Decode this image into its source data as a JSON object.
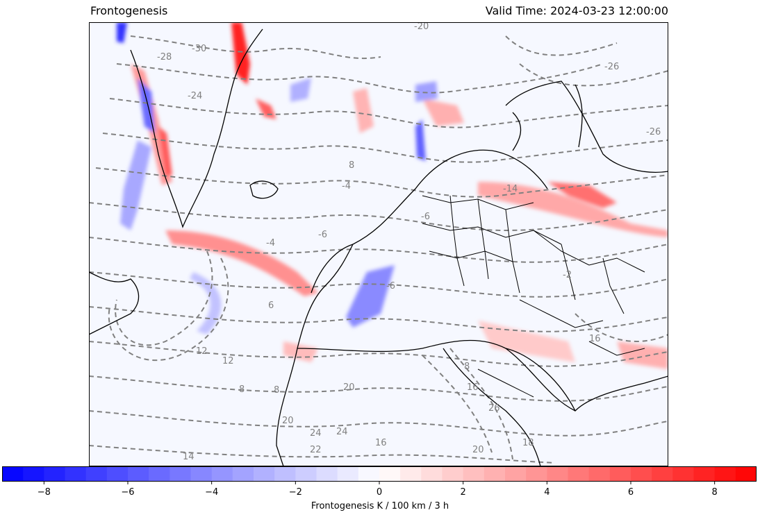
{
  "header": {
    "title_left": "Frontogenesis",
    "title_right": "Valid Time: 2024-03-23 12:00:00"
  },
  "map": {
    "field": "frontogenesis",
    "contour_labels": [
      "-30",
      "-28",
      "-24",
      "-20",
      "-26",
      "-26",
      "8",
      "-4",
      "-14",
      "-6",
      "-2",
      "-6",
      "6",
      "12",
      "12",
      "8",
      "8",
      "8",
      "20",
      "20",
      "24",
      "24",
      "22",
      "16",
      "16",
      "20",
      "26",
      "18",
      "14",
      "-6",
      "-4",
      "16"
    ],
    "fill_colors": {
      "negative": "#0000ff",
      "zero": "#ffffff",
      "positive": "#ff0000"
    },
    "contour_color": "#808080",
    "coastline_color": "#000000"
  },
  "colorbar": {
    "min": -9,
    "max": 9,
    "ticks": [
      "−8",
      "−6",
      "−4",
      "−2",
      "0",
      "2",
      "4",
      "6",
      "8"
    ],
    "tick_values": [
      -8,
      -6,
      -4,
      -2,
      0,
      2,
      4,
      6,
      8
    ],
    "label": "Frontogenesis K / 100 km / 3 h"
  }
}
